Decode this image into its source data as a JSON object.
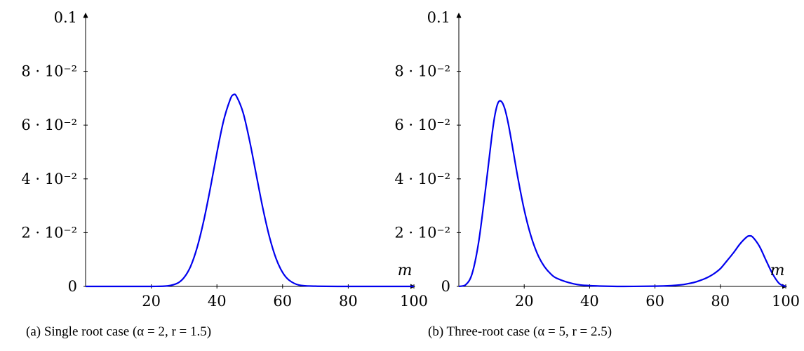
{
  "chart_data": [
    {
      "type": "line",
      "caption": "(a) Single root case (α = 2, r = 1.5)",
      "xlabel": "m",
      "ylabel": "",
      "xlim": [
        0,
        100
      ],
      "ylim": [
        0,
        0.1
      ],
      "x_ticks": [
        20,
        40,
        60,
        80,
        100
      ],
      "x_tick_labels": [
        "20",
        "40",
        "60",
        "80",
        "100"
      ],
      "y_ticks": [
        0,
        0.02,
        0.04,
        0.06,
        0.08,
        0.1
      ],
      "y_tick_labels": [
        "0",
        "2 · 10⁻²",
        "4 · 10⁻²",
        "6 · 10⁻²",
        "8 · 10⁻²",
        "0.1"
      ],
      "grid": false,
      "color": "#0000ee",
      "series": [
        {
          "x": [
            0,
            10,
            20,
            25,
            28,
            30,
            32,
            34,
            36,
            38,
            40,
            42,
            44,
            45,
            46,
            48,
            50,
            52,
            54,
            56,
            58,
            60,
            62,
            65,
            70,
            80,
            90,
            100
          ],
          "values": [
            0,
            0,
            0,
            0.0002,
            0.0012,
            0.0033,
            0.0075,
            0.0146,
            0.0245,
            0.0366,
            0.0497,
            0.0615,
            0.0694,
            0.0713,
            0.0706,
            0.0645,
            0.0539,
            0.0414,
            0.029,
            0.0184,
            0.0104,
            0.0052,
            0.0023,
            0.0005,
            0.0001,
            0,
            0,
            0
          ]
        }
      ]
    },
    {
      "type": "line",
      "caption": "(b) Three-root case (α = 5, r = 2.5)",
      "xlabel": "m",
      "ylabel": "",
      "xlim": [
        0,
        100
      ],
      "ylim": [
        0,
        0.1
      ],
      "x_ticks": [
        20,
        40,
        60,
        80,
        100
      ],
      "x_tick_labels": [
        "20",
        "40",
        "60",
        "80",
        "100"
      ],
      "y_ticks": [
        0,
        0.02,
        0.04,
        0.06,
        0.08,
        0.1
      ],
      "y_tick_labels": [
        "0",
        "2 · 10⁻²",
        "4 · 10⁻²",
        "6 · 10⁻²",
        "8 · 10⁻²",
        "0.1"
      ],
      "grid": false,
      "color": "#0000ee",
      "series": [
        {
          "x": [
            0,
            2,
            4,
            6,
            8,
            10,
            11,
            12,
            13,
            14,
            15,
            16,
            18,
            20,
            22,
            24,
            26,
            28,
            30,
            35,
            40,
            50,
            60,
            65,
            68,
            70,
            72,
            74,
            76,
            78,
            80,
            82,
            84,
            86,
            88,
            89,
            90,
            92,
            94,
            96,
            98,
            100
          ],
          "values": [
            0,
            0.0005,
            0.0045,
            0.016,
            0.0345,
            0.055,
            0.0635,
            0.0683,
            0.0688,
            0.0663,
            0.0613,
            0.0548,
            0.0408,
            0.0285,
            0.019,
            0.0122,
            0.0077,
            0.0048,
            0.003,
            0.001,
            0.0003,
            0,
            0.0001,
            0.0003,
            0.0006,
            0.001,
            0.0015,
            0.0023,
            0.0033,
            0.0047,
            0.0066,
            0.0095,
            0.0125,
            0.0158,
            0.0183,
            0.0188,
            0.0182,
            0.0148,
            0.0096,
            0.0046,
            0.0011,
            0
          ]
        }
      ]
    }
  ]
}
